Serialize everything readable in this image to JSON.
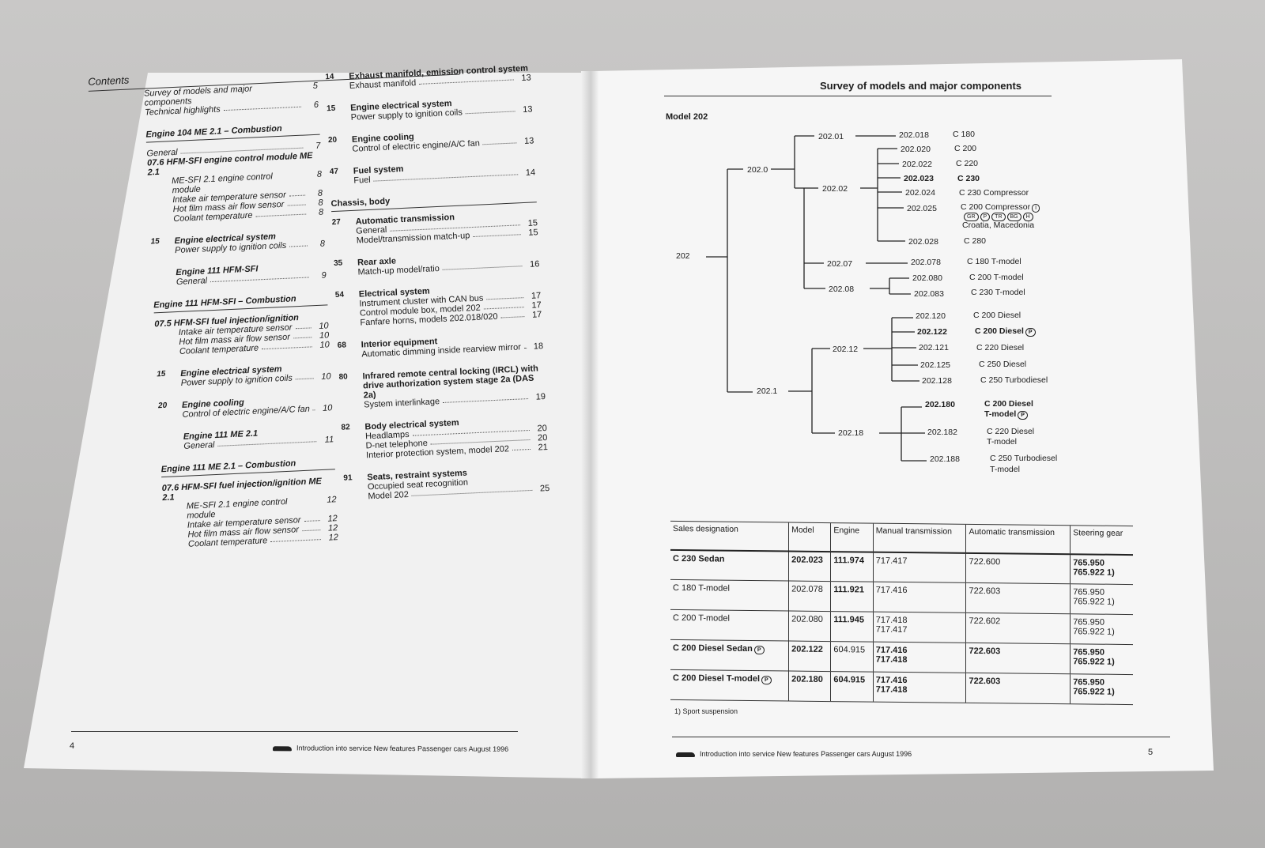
{
  "left_page": {
    "contents_title": "Contents",
    "col1": [
      {
        "type": "entries",
        "entries": [
          {
            "label": "Survey of models and major components",
            "page": "5"
          },
          {
            "label": "Technical highlights",
            "page": "6"
          }
        ]
      },
      {
        "type": "section",
        "title": "Engine 104 ME 2.1 – Combustion"
      },
      {
        "type": "entries",
        "entries": [
          {
            "label": "General",
            "page": "7"
          },
          {
            "label": "07.6 HFM-SFI engine control module ME 2.1",
            "page": "",
            "bold": true
          },
          {
            "label": "ME-SFI 2.1 engine control module",
            "page": "8",
            "indent": true
          },
          {
            "label": "Intake air temperature sensor",
            "page": "8",
            "indent": true
          },
          {
            "label": "Hot film mass air flow sensor",
            "page": "8",
            "indent": true
          },
          {
            "label": "Coolant temperature",
            "page": "8",
            "indent": true
          }
        ]
      },
      {
        "type": "group",
        "num": "15",
        "title": "Engine electrical system",
        "entries": [
          {
            "label": "Power supply to ignition coils",
            "page": "8"
          }
        ]
      },
      {
        "type": "group",
        "num": "",
        "title": "Engine 111 HFM-SFI",
        "entries": [
          {
            "label": "General",
            "page": "9"
          }
        ]
      },
      {
        "type": "section",
        "title": "Engine 111 HFM-SFI – Combustion"
      },
      {
        "type": "entries",
        "entries": [
          {
            "label": "07.5 HFM-SFI fuel injection/ignition",
            "page": "",
            "bold": true
          },
          {
            "label": "Intake air temperature sensor",
            "page": "10",
            "indent": true
          },
          {
            "label": "Hot film mass air flow sensor",
            "page": "10",
            "indent": true
          },
          {
            "label": "Coolant temperature",
            "page": "10",
            "indent": true
          }
        ]
      },
      {
        "type": "group",
        "num": "15",
        "title": "Engine electrical system",
        "entries": [
          {
            "label": "Power supply to ignition coils",
            "page": "10"
          }
        ]
      },
      {
        "type": "group",
        "num": "20",
        "title": "Engine cooling",
        "entries": [
          {
            "label": "Control of electric engine/A/C fan",
            "page": "10"
          }
        ]
      },
      {
        "type": "group",
        "num": "",
        "title": "Engine 111 ME 2.1",
        "entries": [
          {
            "label": "General",
            "page": "11"
          }
        ]
      },
      {
        "type": "section",
        "title": "Engine 111 ME 2.1 – Combustion"
      },
      {
        "type": "entries",
        "entries": [
          {
            "label": "07.6 HFM-SFI fuel injection/ignition ME 2.1",
            "page": "",
            "bold": true
          },
          {
            "label": "ME-SFI 2.1 engine control module",
            "page": "12",
            "indent": true
          },
          {
            "label": "Intake air temperature sensor",
            "page": "12",
            "indent": true
          },
          {
            "label": "Hot film mass air flow sensor",
            "page": "12",
            "indent": true
          },
          {
            "label": "Coolant temperature",
            "page": "12",
            "indent": true
          }
        ]
      }
    ],
    "col2": [
      {
        "type": "group",
        "num": "14",
        "title": "Exhaust manifold, emission control system",
        "entries": [
          {
            "label": "Exhaust manifold",
            "page": "13"
          }
        ]
      },
      {
        "type": "group",
        "num": "15",
        "title": "Engine electrical system",
        "entries": [
          {
            "label": "Power supply to ignition coils",
            "page": "13"
          }
        ]
      },
      {
        "type": "group",
        "num": "20",
        "title": "Engine cooling",
        "entries": [
          {
            "label": "Control of electric engine/A/C fan",
            "page": "13"
          }
        ]
      },
      {
        "type": "group",
        "num": "47",
        "title": "Fuel system",
        "entries": [
          {
            "label": "Fuel",
            "page": "14"
          }
        ]
      },
      {
        "type": "section",
        "title": "Chassis, body"
      },
      {
        "type": "group",
        "num": "27",
        "title": "Automatic transmission",
        "entries": [
          {
            "label": "General",
            "page": "15"
          },
          {
            "label": "Model/transmission match-up",
            "page": "15"
          }
        ]
      },
      {
        "type": "group",
        "num": "35",
        "title": "Rear axle",
        "entries": [
          {
            "label": "Match-up model/ratio",
            "page": "16"
          }
        ]
      },
      {
        "type": "group",
        "num": "54",
        "title": "Electrical system",
        "entries": [
          {
            "label": "Instrument cluster with CAN bus",
            "page": "17"
          },
          {
            "label": "Control module box, model 202",
            "page": "17"
          },
          {
            "label": "Fanfare horns, models 202.018/020",
            "page": "17"
          }
        ]
      },
      {
        "type": "group",
        "num": "68",
        "title": "Interior equipment",
        "entries": [
          {
            "label": "Automatic dimming inside rearview mirror",
            "page": "18"
          }
        ]
      },
      {
        "type": "group",
        "num": "80",
        "title": "Infrared remote central locking (IRCL) with drive authorization system stage 2a (DAS 2a)",
        "entries": [
          {
            "label": "System interlinkage",
            "page": "19"
          }
        ]
      },
      {
        "type": "group",
        "num": "82",
        "title": "Body electrical system",
        "entries": [
          {
            "label": "Headlamps",
            "page": "20"
          },
          {
            "label": "D-net telephone",
            "page": "20"
          },
          {
            "label": "Interior protection system, model 202",
            "page": "21"
          }
        ]
      },
      {
        "type": "group",
        "num": "91",
        "title": "Seats, restraint systems",
        "entries": [
          {
            "label": "Occupied seat recognition",
            "page": ""
          },
          {
            "label": "Model 202",
            "page": "25"
          }
        ]
      }
    ],
    "page_number": "4",
    "footer": "Introduction into service New features Passenger cars August 1996"
  },
  "right_page": {
    "title": "Survey of models and major components",
    "model_label": "Model 202",
    "tree": [
      {
        "text": "202"
      },
      {
        "text": "202.0"
      },
      {
        "text": "202.01"
      },
      {
        "text": "202.02"
      },
      {
        "text": "202.07"
      },
      {
        "text": "202.08"
      },
      {
        "text": "202.018"
      },
      {
        "text": "202.020"
      },
      {
        "text": "202.022"
      },
      {
        "text": "202.023",
        "bold": true
      },
      {
        "text": "202.024"
      },
      {
        "text": "202.025"
      },
      {
        "text": "202.028"
      },
      {
        "text": "C 180"
      },
      {
        "text": "C 200"
      },
      {
        "text": "C 220"
      },
      {
        "text": "C 230",
        "bold": true
      },
      {
        "text": "C 230 Compressor"
      },
      {
        "text": "C 200 Compressor",
        "badges": [
          "I"
        ]
      },
      {
        "text": "",
        "badges": [
          "GR",
          "P",
          "TR",
          "BG",
          "H"
        ]
      },
      {
        "text": "Croatia, Macedonia"
      },
      {
        "text": "C 280"
      },
      {
        "text": "202.078"
      },
      {
        "text": "C 180 T-model"
      },
      {
        "text": "202.080"
      },
      {
        "text": "202.083"
      },
      {
        "text": "C 200 T-model"
      },
      {
        "text": "C 230 T-model"
      },
      {
        "text": "202.1"
      },
      {
        "text": "202.12"
      },
      {
        "text": "202.18"
      },
      {
        "text": "202.120"
      },
      {
        "text": "202.122",
        "bold": true
      },
      {
        "text": "202.121"
      },
      {
        "text": "202.125"
      },
      {
        "text": "202.128"
      },
      {
        "text": "C 200 Diesel"
      },
      {
        "text": "C 200 Diesel",
        "bold": true,
        "badges": [
          "P"
        ]
      },
      {
        "text": "C 220 Diesel"
      },
      {
        "text": "C 250 Diesel"
      },
      {
        "text": "C 250 Turbodiesel"
      },
      {
        "text": "202.180",
        "bold": true
      },
      {
        "text": "202.182"
      },
      {
        "text": "202.188"
      },
      {
        "text": "C 200 Diesel",
        "bold": true
      },
      {
        "text": "T-model",
        "bold": true,
        "badges": [
          "P"
        ]
      },
      {
        "text": "C 220 Diesel"
      },
      {
        "text": "T-model"
      },
      {
        "text": "C 250 Turbodiesel"
      },
      {
        "text": "T-model"
      }
    ],
    "table": {
      "headers": [
        "Sales designation",
        "Model",
        "Engine",
        "Manual transmission",
        "Automatic transmission",
        "Steering gear"
      ],
      "rows": [
        {
          "bold": [
            true,
            true,
            true,
            false,
            false,
            true
          ],
          "cells": [
            "C 230 Sedan",
            "202.023",
            "111.974",
            "717.417",
            "722.600",
            "765.950\n765.922 1)"
          ]
        },
        {
          "bold": [
            false,
            false,
            true,
            false,
            false,
            false
          ],
          "cells": [
            "C 180 T-model",
            "202.078",
            "111.921",
            "717.416",
            "722.603",
            "765.950\n765.922 1)"
          ]
        },
        {
          "bold": [
            false,
            false,
            true,
            false,
            false,
            false
          ],
          "cells": [
            "C 200 T-model",
            "202.080",
            "111.945",
            "717.418\n717.417",
            "722.602",
            "765.950\n765.922 1)"
          ]
        },
        {
          "bold": [
            true,
            true,
            false,
            true,
            true,
            true
          ],
          "badge": "P",
          "cells": [
            "C 200 Diesel Sedan",
            "202.122",
            "604.915",
            "717.416\n717.418",
            "722.603",
            "765.950\n765.922 1)"
          ]
        },
        {
          "bold": [
            true,
            true,
            true,
            true,
            true,
            true
          ],
          "badge": "P",
          "cells": [
            "C 200 Diesel T-model",
            "202.180",
            "604.915",
            "717.416\n717.418",
            "722.603",
            "765.950\n765.922 1)"
          ]
        }
      ]
    },
    "footnote": "1)   Sport suspension",
    "page_number": "5",
    "footer": "Introduction into service New features Passenger cars August 1996"
  }
}
